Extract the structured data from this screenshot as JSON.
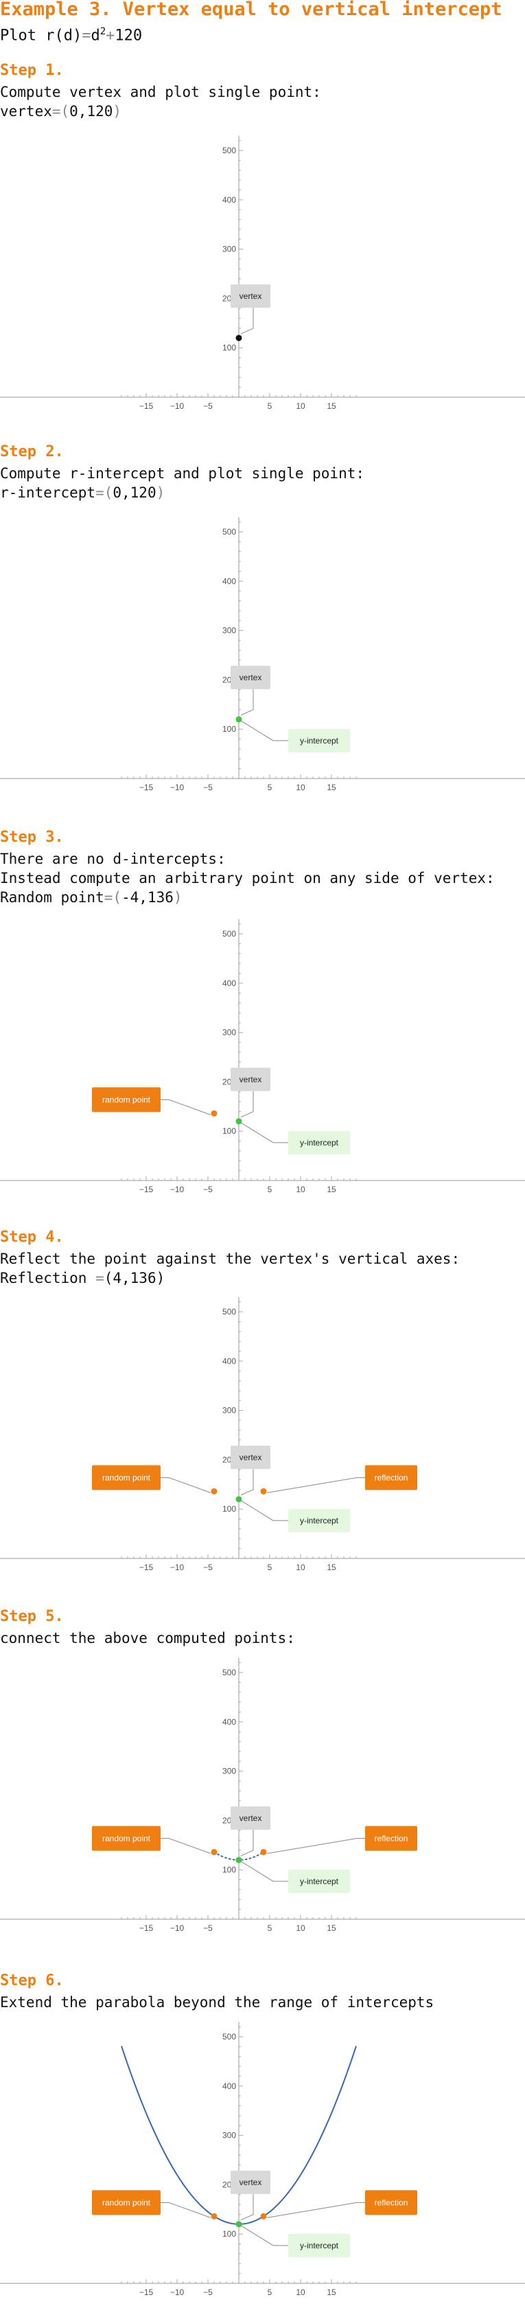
{
  "title": "Example 3. Vertex equal to vertical intercept",
  "plot_line": {
    "prefix": "Plot ",
    "func": "r(d)",
    "eq": "=",
    "var": "d",
    "exp": "2",
    "plus": "+",
    "const": "120"
  },
  "steps": [
    {
      "label": "Step 1.",
      "lines": [
        [
          {
            "t": "Compute vertex and plot single point:"
          }
        ],
        [
          {
            "t": "vertex"
          },
          {
            "t": "=(",
            "g": true
          },
          {
            "t": "0,120"
          },
          {
            "t": ")",
            "g": true
          }
        ]
      ]
    },
    {
      "label": "Step 2.",
      "lines": [
        [
          {
            "t": "Compute r-intercept and plot single point:"
          }
        ],
        [
          {
            "t": "r-intercept"
          },
          {
            "t": "=(",
            "g": true
          },
          {
            "t": "0,120"
          },
          {
            "t": ")",
            "g": true
          }
        ]
      ]
    },
    {
      "label": "Step 3.",
      "lines": [
        [
          {
            "t": "There are no d-intercepts:"
          }
        ],
        [
          {
            "t": "Instead compute an arbitrary point on any side of vertex:"
          }
        ],
        [
          {
            "t": "Random point"
          },
          {
            "t": "=(",
            "g": true
          },
          {
            "t": "-4,136"
          },
          {
            "t": ")",
            "g": true
          }
        ]
      ]
    },
    {
      "label": "Step 4.",
      "lines": [
        [
          {
            "t": "Reflect the point against the vertex's vertical axes:"
          }
        ],
        [
          {
            "t": "Reflection "
          },
          {
            "t": "=",
            "g": true
          },
          {
            "t": "(4,136)"
          }
        ]
      ]
    },
    {
      "label": "Step 5.",
      "lines": [
        [
          {
            "t": "connect the above computed points:"
          }
        ]
      ]
    },
    {
      "label": "Step 6.",
      "lines": [
        [
          {
            "t": "Extend the parabola beyond the range of intercepts"
          }
        ]
      ]
    }
  ],
  "colors": {
    "accent": "#f07f12",
    "vertex_point": "#111111",
    "intercept_point": "#3ec63e",
    "random_point": "#f07f12",
    "curve": "#3a68b0",
    "vertex_box": "#d9d9d9",
    "intercept_box": "#e3f8df",
    "orange_box": "#f07f12"
  },
  "chart_data": [
    {
      "type": "scatter",
      "title": "",
      "xlabel": "",
      "ylabel": "",
      "xlim": [
        -19,
        19
      ],
      "ylim": [
        0,
        530
      ],
      "x_ticks": [
        -15,
        -10,
        -5,
        5,
        10,
        15
      ],
      "y_ticks": [
        100,
        200,
        300,
        400,
        500
      ],
      "points": [
        {
          "x": 0,
          "y": 120,
          "role": "vertex"
        }
      ],
      "labels": [
        {
          "text": "vertex",
          "role": "vertex"
        }
      ],
      "curve": null
    },
    {
      "type": "scatter",
      "title": "",
      "xlabel": "",
      "ylabel": "",
      "xlim": [
        -19,
        19
      ],
      "ylim": [
        0,
        530
      ],
      "x_ticks": [
        -15,
        -10,
        -5,
        5,
        10,
        15
      ],
      "y_ticks": [
        100,
        200,
        300,
        400,
        500
      ],
      "points": [
        {
          "x": 0,
          "y": 120,
          "role": "intercept"
        }
      ],
      "labels": [
        {
          "text": "vertex",
          "role": "vertex"
        },
        {
          "text": "y-intercept",
          "role": "intercept"
        }
      ],
      "curve": null
    },
    {
      "type": "scatter",
      "title": "",
      "xlabel": "",
      "ylabel": "",
      "xlim": [
        -19,
        19
      ],
      "ylim": [
        0,
        530
      ],
      "x_ticks": [
        -15,
        -10,
        -5,
        5,
        10,
        15
      ],
      "y_ticks": [
        100,
        200,
        300,
        400,
        500
      ],
      "points": [
        {
          "x": 0,
          "y": 120,
          "role": "intercept"
        },
        {
          "x": -4,
          "y": 136,
          "role": "random"
        }
      ],
      "labels": [
        {
          "text": "vertex",
          "role": "vertex"
        },
        {
          "text": "y-intercept",
          "role": "intercept"
        },
        {
          "text": "random point",
          "role": "random"
        }
      ],
      "curve": null
    },
    {
      "type": "scatter",
      "title": "",
      "xlabel": "",
      "ylabel": "",
      "xlim": [
        -19,
        19
      ],
      "ylim": [
        0,
        530
      ],
      "x_ticks": [
        -15,
        -10,
        -5,
        5,
        10,
        15
      ],
      "y_ticks": [
        100,
        200,
        300,
        400,
        500
      ],
      "points": [
        {
          "x": 0,
          "y": 120,
          "role": "intercept"
        },
        {
          "x": -4,
          "y": 136,
          "role": "random"
        },
        {
          "x": 4,
          "y": 136,
          "role": "reflection"
        }
      ],
      "labels": [
        {
          "text": "vertex",
          "role": "vertex"
        },
        {
          "text": "y-intercept",
          "role": "intercept"
        },
        {
          "text": "random point",
          "role": "random"
        },
        {
          "text": "reflection",
          "role": "reflection"
        }
      ],
      "curve": null
    },
    {
      "type": "line",
      "title": "",
      "xlabel": "",
      "ylabel": "",
      "xlim": [
        -19,
        19
      ],
      "ylim": [
        0,
        530
      ],
      "x_ticks": [
        -15,
        -10,
        -5,
        5,
        10,
        15
      ],
      "y_ticks": [
        100,
        200,
        300,
        400,
        500
      ],
      "points": [
        {
          "x": 0,
          "y": 120,
          "role": "intercept"
        },
        {
          "x": -4,
          "y": 136,
          "role": "random"
        },
        {
          "x": 4,
          "y": 136,
          "role": "reflection"
        }
      ],
      "labels": [
        {
          "text": "vertex",
          "role": "vertex"
        },
        {
          "text": "y-intercept",
          "role": "intercept"
        },
        {
          "text": "random point",
          "role": "random"
        },
        {
          "text": "reflection",
          "role": "reflection"
        }
      ],
      "curve": {
        "equation": "r = d^2 + 120",
        "d_range": [
          -4,
          4
        ],
        "style": "dotted"
      }
    },
    {
      "type": "line",
      "title": "",
      "xlabel": "",
      "ylabel": "",
      "xlim": [
        -19,
        19
      ],
      "ylim": [
        0,
        530
      ],
      "x_ticks": [
        -15,
        -10,
        -5,
        5,
        10,
        15
      ],
      "y_ticks": [
        100,
        200,
        300,
        400,
        500
      ],
      "points": [
        {
          "x": 0,
          "y": 120,
          "role": "intercept"
        },
        {
          "x": -4,
          "y": 136,
          "role": "random"
        },
        {
          "x": 4,
          "y": 136,
          "role": "reflection"
        }
      ],
      "labels": [
        {
          "text": "vertex",
          "role": "vertex"
        },
        {
          "text": "y-intercept",
          "role": "intercept"
        },
        {
          "text": "random point",
          "role": "random"
        },
        {
          "text": "reflection",
          "role": "reflection"
        }
      ],
      "curve": {
        "equation": "r = d^2 + 120",
        "d_range": [
          -19,
          19
        ],
        "style": "solid"
      }
    }
  ]
}
